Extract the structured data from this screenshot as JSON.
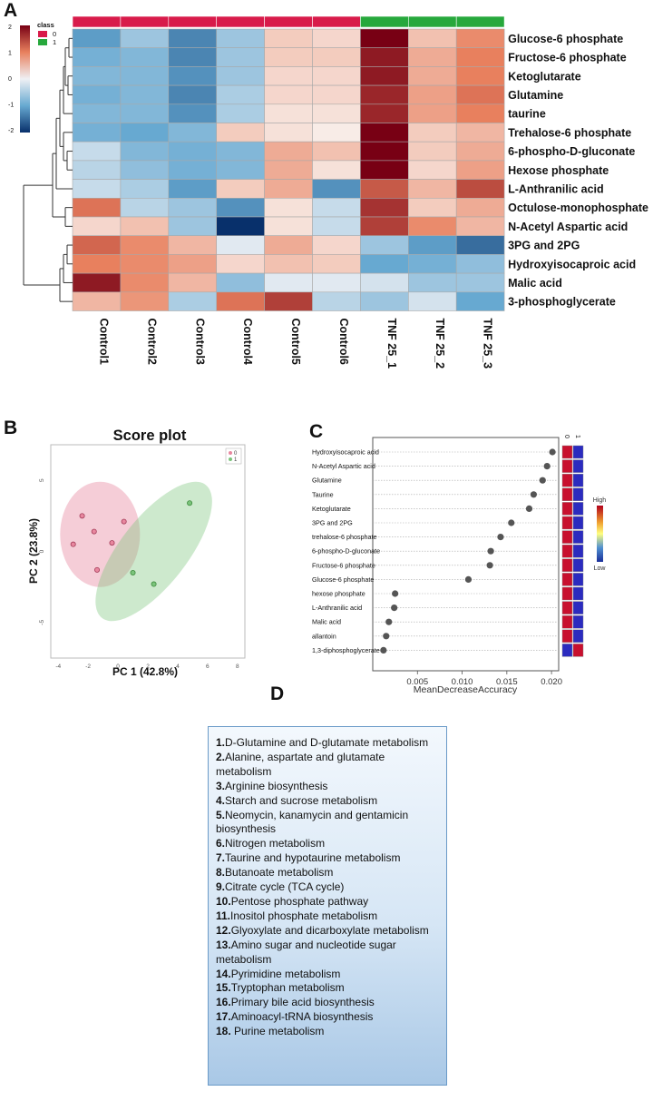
{
  "panels": {
    "a": "A",
    "b": "B",
    "c": "C",
    "d": "D"
  },
  "chart_data": [
    {
      "type": "heatmap",
      "panel": "A",
      "columns": [
        "Control1",
        "Control2",
        "Control3",
        "Control4",
        "Control5",
        "Control6",
        "TNF 25_1",
        "TNF 25_2",
        "TNF 25_3"
      ],
      "column_class": [
        0,
        0,
        0,
        0,
        0,
        0,
        1,
        1,
        1
      ],
      "rows": [
        "Glucose-6 phosphate",
        "Fructose-6 phosphate",
        "Ketoglutarate",
        "Glutamine",
        "taurine",
        "Trehalose-6 phosphate",
        "6-phospho-D-gluconate",
        "Hexose phosphate",
        "L-Anthranilic acid",
        "Octulose-monophosphate",
        "N-Acetyl Aspartic acid",
        "3PG and 2PG",
        "Hydroxyisocaproic acid",
        "Malic acid",
        "3-phosphoglycerate"
      ],
      "values": [
        [
          -1.1,
          -0.6,
          -1.3,
          -0.6,
          0.3,
          0.2,
          2.0,
          0.4,
          0.9
        ],
        [
          -0.9,
          -0.8,
          -1.3,
          -0.6,
          0.3,
          0.3,
          1.8,
          0.6,
          1.0
        ],
        [
          -0.8,
          -0.8,
          -1.2,
          -0.6,
          0.2,
          0.2,
          1.8,
          0.6,
          1.0
        ],
        [
          -0.9,
          -0.8,
          -1.3,
          -0.5,
          0.2,
          0.2,
          1.7,
          0.7,
          1.1
        ],
        [
          -0.8,
          -0.8,
          -1.2,
          -0.5,
          0.1,
          0.1,
          1.7,
          0.7,
          1.0
        ],
        [
          -0.9,
          -1.0,
          -0.8,
          0.3,
          0.1,
          0.0,
          2.2,
          0.3,
          0.5
        ],
        [
          -0.3,
          -0.8,
          -0.9,
          -0.8,
          0.6,
          0.4,
          2.0,
          0.3,
          0.6
        ],
        [
          -0.4,
          -0.7,
          -0.9,
          -0.8,
          0.6,
          0.1,
          2.1,
          0.2,
          0.7
        ],
        [
          -0.3,
          -0.5,
          -1.1,
          0.3,
          0.6,
          -1.2,
          1.3,
          0.5,
          1.4
        ],
        [
          1.1,
          -0.4,
          -0.6,
          -1.2,
          0.1,
          -0.3,
          1.6,
          0.3,
          0.6
        ],
        [
          0.2,
          0.4,
          -0.6,
          -2.0,
          0.1,
          -0.3,
          1.5,
          0.9,
          0.5
        ],
        [
          1.2,
          0.9,
          0.5,
          -0.1,
          0.6,
          0.2,
          -0.6,
          -1.1,
          -1.5
        ],
        [
          1.0,
          0.9,
          0.7,
          0.2,
          0.4,
          0.3,
          -1.0,
          -0.9,
          -0.7
        ],
        [
          1.8,
          0.9,
          0.5,
          -0.7,
          -0.1,
          -0.1,
          -0.2,
          -0.6,
          -0.6
        ],
        [
          0.5,
          0.8,
          -0.5,
          1.1,
          1.5,
          -0.4,
          -0.6,
          -0.2,
          -1.0
        ]
      ],
      "color_scale": {
        "min": -2,
        "max": 2,
        "ticks": [
          "2",
          "1",
          "0",
          "-1",
          "-2"
        ]
      },
      "legend": {
        "title": "class",
        "items": [
          {
            "label": "0",
            "color": "#d81b4a"
          },
          {
            "label": "1",
            "color": "#27a83c"
          }
        ]
      }
    },
    {
      "type": "scatter",
      "panel": "B",
      "title": "Score plot",
      "xlabel": "PC 1 (42.8%)",
      "ylabel": "PC 2 (23.8%)",
      "xlim": [
        -4.5,
        8.5
      ],
      "ylim": [
        -7.5,
        7.5
      ],
      "xticks": [
        "-4",
        "-2",
        "0",
        "2",
        "4",
        "6",
        "8"
      ],
      "yticks": [
        "5",
        "0",
        "-5"
      ],
      "series": [
        {
          "name": "0",
          "color": "#e8879f",
          "x": [
            -2.4,
            -1.6,
            0.4,
            -3.0,
            -0.4,
            -1.4
          ],
          "y": [
            2.5,
            1.4,
            2.1,
            0.5,
            0.6,
            -1.3
          ]
        },
        {
          "name": "1",
          "color": "#7bc47b",
          "x": [
            4.8,
            1.0,
            2.4
          ],
          "y": [
            3.4,
            -1.5,
            -2.3
          ]
        }
      ],
      "legend": [
        "0",
        "1"
      ]
    },
    {
      "type": "dot",
      "panel": "C",
      "xlabel": "MeanDecreaseAccuracy",
      "xlim": [
        0.0,
        0.0208
      ],
      "xticks": [
        "0.005",
        "0.010",
        "0.015",
        "0.020"
      ],
      "labels": [
        "Hydroxyisocaproic acid",
        "N-Acetyl Aspartic acid",
        "Glutamine",
        "Taurine",
        "Ketoglutarate",
        "3PG and 2PG",
        "trehalose-6 phosphate",
        "6-phospho-D-gluconate",
        "Fructose-6 phosphate",
        "Glucose-6 phosphate",
        "hexose phosphate",
        "L-Anthranilic acid",
        "Malic acid",
        "allantoin",
        "1,3-diphosphoglycerate"
      ],
      "values": [
        0.0201,
        0.0195,
        0.019,
        0.018,
        0.0175,
        0.0155,
        0.0143,
        0.0132,
        0.0131,
        0.0107,
        0.0025,
        0.0024,
        0.0018,
        0.0015,
        0.0012
      ],
      "group_labels": [
        "0",
        "1"
      ],
      "group_colors": [
        [
          "red",
          "blue"
        ],
        [
          "red",
          "blue"
        ],
        [
          "red",
          "blue"
        ],
        [
          "red",
          "blue"
        ],
        [
          "red",
          "blue"
        ],
        [
          "red",
          "blue"
        ],
        [
          "red",
          "blue"
        ],
        [
          "red",
          "blue"
        ],
        [
          "red",
          "blue"
        ],
        [
          "red",
          "blue"
        ],
        [
          "red",
          "blue"
        ],
        [
          "red",
          "blue"
        ],
        [
          "red",
          "blue"
        ],
        [
          "red",
          "blue"
        ],
        [
          "blue",
          "red"
        ]
      ],
      "colorbar": {
        "high": "High",
        "low": "Low"
      }
    }
  ],
  "pathways": [
    {
      "num": "1.",
      "text": "D-Glutamine and D-glutamate metabolism"
    },
    {
      "num": "2.",
      "text": "Alanine, aspartate and glutamate metabolism"
    },
    {
      "num": "3.",
      "text": "Arginine biosynthesis"
    },
    {
      "num": "4.",
      "text": "Starch and sucrose metabolism"
    },
    {
      "num": "5.",
      "text": "Neomycin, kanamycin and gentamicin biosynthesis"
    },
    {
      "num": "6.",
      "text": "Nitrogen metabolism"
    },
    {
      "num": "7.",
      "text": "Taurine and hypotaurine metabolism"
    },
    {
      "num": "8.",
      "text": "Butanoate metabolism"
    },
    {
      "num": "9.",
      "text": "Citrate cycle (TCA cycle)"
    },
    {
      "num": "10.",
      "text": "Pentose phosphate pathway"
    },
    {
      "num": "11.",
      "text": "Inositol phosphate metabolism"
    },
    {
      "num": "12.",
      "text": "Glyoxylate and dicarboxylate metabolism"
    },
    {
      "num": "13.",
      "text": "Amino sugar and nucleotide sugar metabolism"
    },
    {
      "num": "14.",
      "text": "Pyrimidine metabolism"
    },
    {
      "num": "15.",
      "text": "Tryptophan metabolism"
    },
    {
      "num": "16.",
      "text": "Primary bile acid biosynthesis"
    },
    {
      "num": "17.",
      "text": "Aminoacyl-tRNA biosynthesis"
    },
    {
      "num": "18.",
      "text": " Purine metabolism"
    }
  ]
}
